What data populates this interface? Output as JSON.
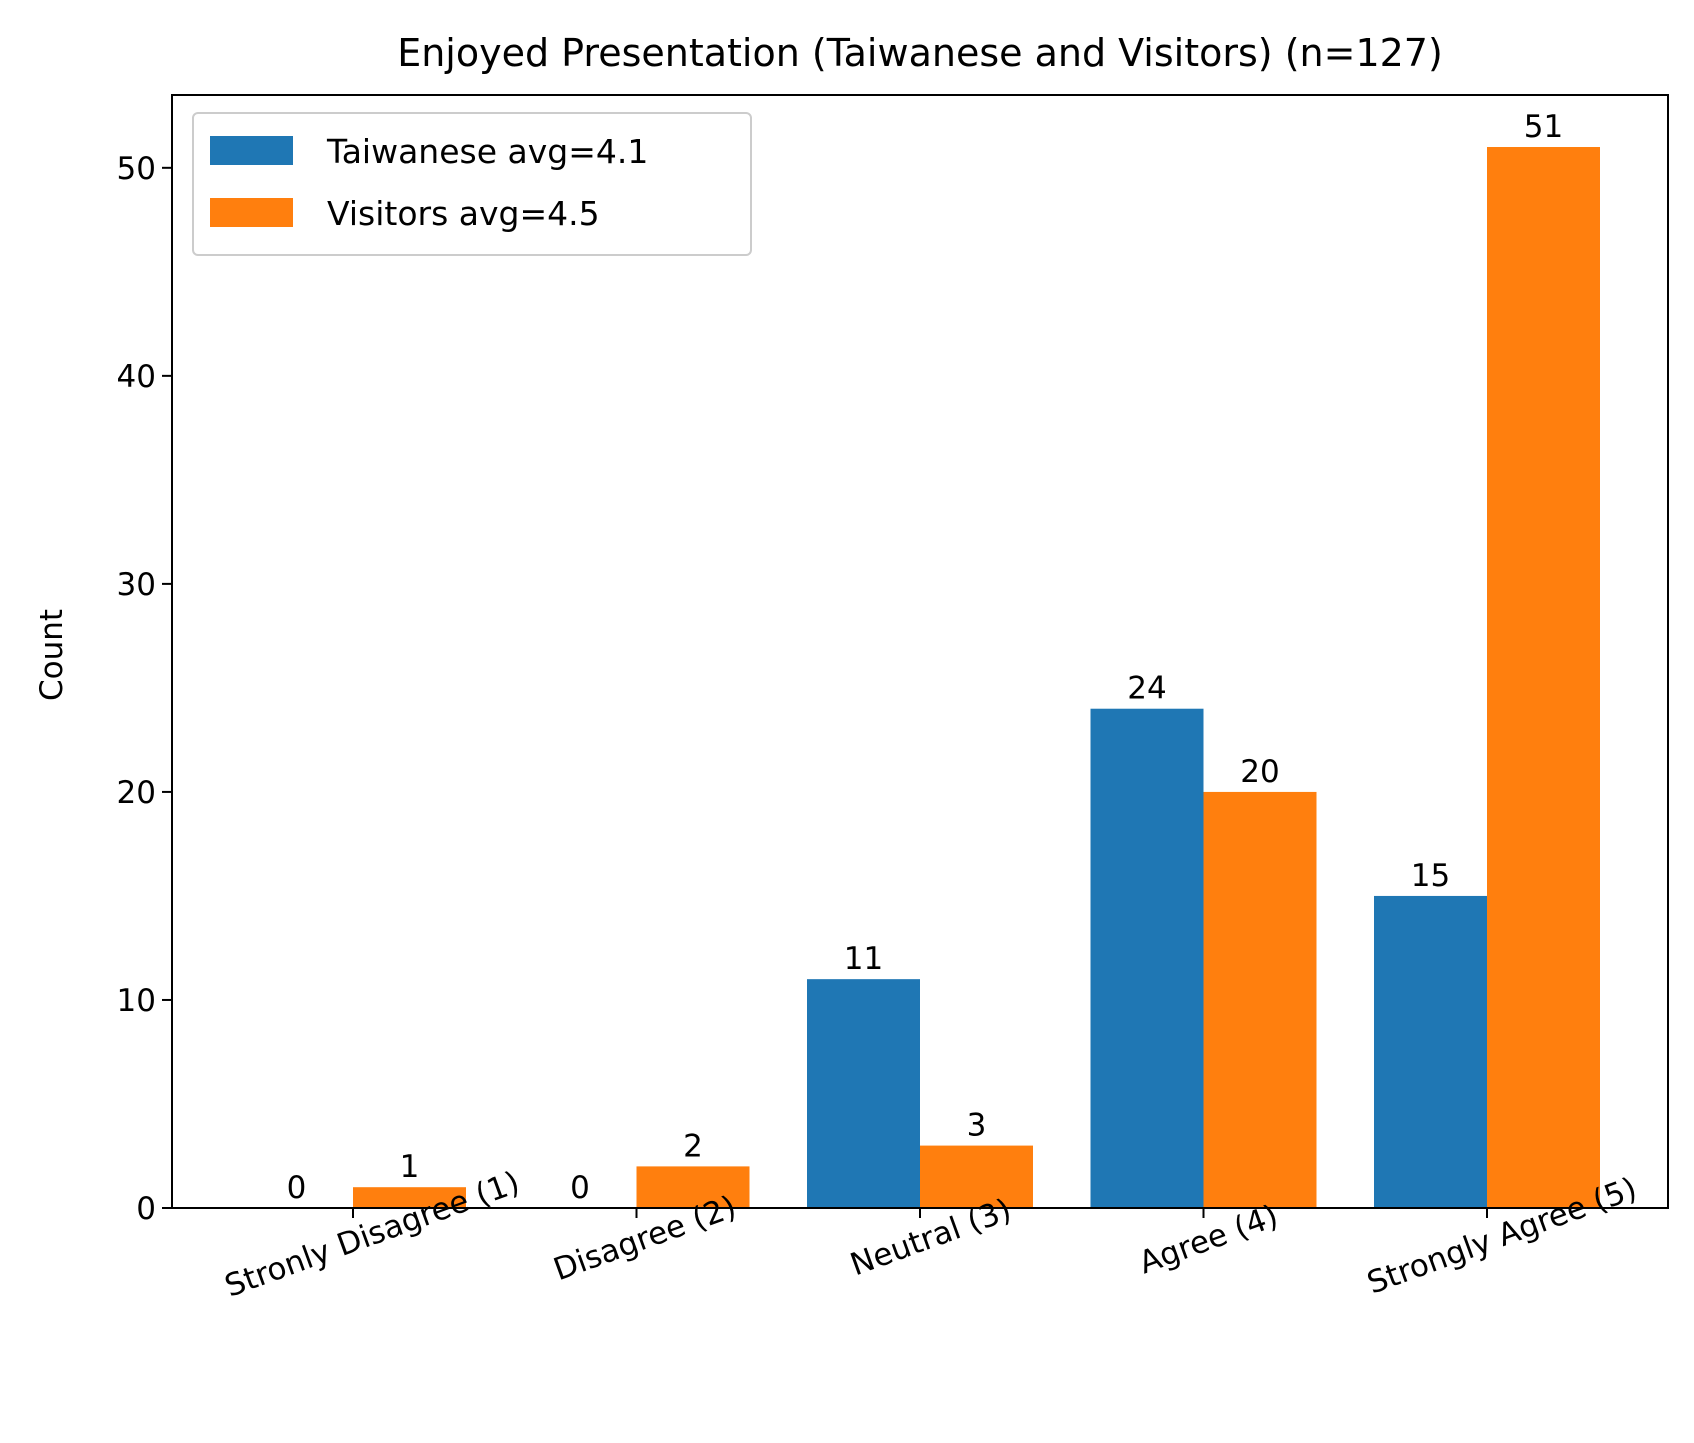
{
  "chart_data": {
    "type": "bar",
    "title": "Enjoyed Presentation (Taiwanese and Visitors) (n=127)",
    "xlabel": "",
    "ylabel": "Count",
    "categories": [
      "Stronly Disagree (1)",
      "Disagree (2)",
      "Neutral (3)",
      "Agree (4)",
      "Strongly Agree (5)"
    ],
    "series": [
      {
        "name": "Taiwanese avg=4.1",
        "color": "#1f77b4",
        "values": [
          0,
          0,
          11,
          24,
          15
        ]
      },
      {
        "name": "Visitors avg=4.5",
        "color": "#ff7f0e",
        "values": [
          1,
          2,
          3,
          20,
          51
        ]
      }
    ],
    "ylim": [
      0,
      53.5
    ],
    "yticks": [
      0,
      10,
      20,
      30,
      40,
      50
    ],
    "legend": "top-left",
    "grid": false,
    "data_labels": true
  }
}
